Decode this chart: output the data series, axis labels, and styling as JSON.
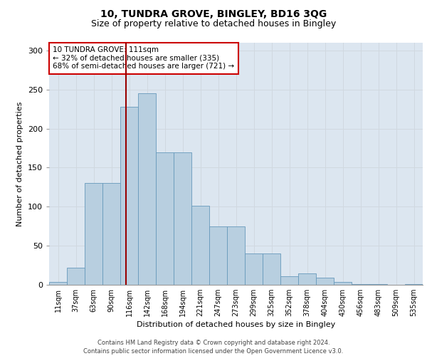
{
  "title1": "10, TUNDRA GROVE, BINGLEY, BD16 3QG",
  "title2": "Size of property relative to detached houses in Bingley",
  "xlabel": "Distribution of detached houses by size in Bingley",
  "ylabel": "Number of detached properties",
  "footer1": "Contains HM Land Registry data © Crown copyright and database right 2024.",
  "footer2": "Contains public sector information licensed under the Open Government Licence v3.0.",
  "categories": [
    "11sqm",
    "37sqm",
    "63sqm",
    "90sqm",
    "116sqm",
    "142sqm",
    "168sqm",
    "194sqm",
    "221sqm",
    "247sqm",
    "273sqm",
    "299sqm",
    "325sqm",
    "352sqm",
    "378sqm",
    "404sqm",
    "430sqm",
    "456sqm",
    "483sqm",
    "509sqm",
    "535sqm"
  ],
  "values": [
    4,
    22,
    130,
    130,
    228,
    245,
    170,
    170,
    101,
    75,
    75,
    40,
    40,
    11,
    15,
    9,
    4,
    1,
    1,
    0,
    1
  ],
  "bar_color": "#b8cfe0",
  "bar_edge_color": "#6699bb",
  "grid_color": "#d0d8e0",
  "bg_color": "#dce6f0",
  "property_line_color": "#990000",
  "annotation_text": "10 TUNDRA GROVE: 111sqm\n← 32% of detached houses are smaller (335)\n68% of semi-detached houses are larger (721) →",
  "annotation_box_facecolor": "#ffffff",
  "annotation_box_edgecolor": "#cc0000",
  "ylim": [
    0,
    310
  ],
  "yticks": [
    0,
    50,
    100,
    150,
    200,
    250,
    300
  ],
  "title1_fontsize": 10,
  "title2_fontsize": 9,
  "xlabel_fontsize": 8,
  "ylabel_fontsize": 8,
  "tick_fontsize": 7,
  "footer_fontsize": 6,
  "ann_fontsize": 7.5
}
